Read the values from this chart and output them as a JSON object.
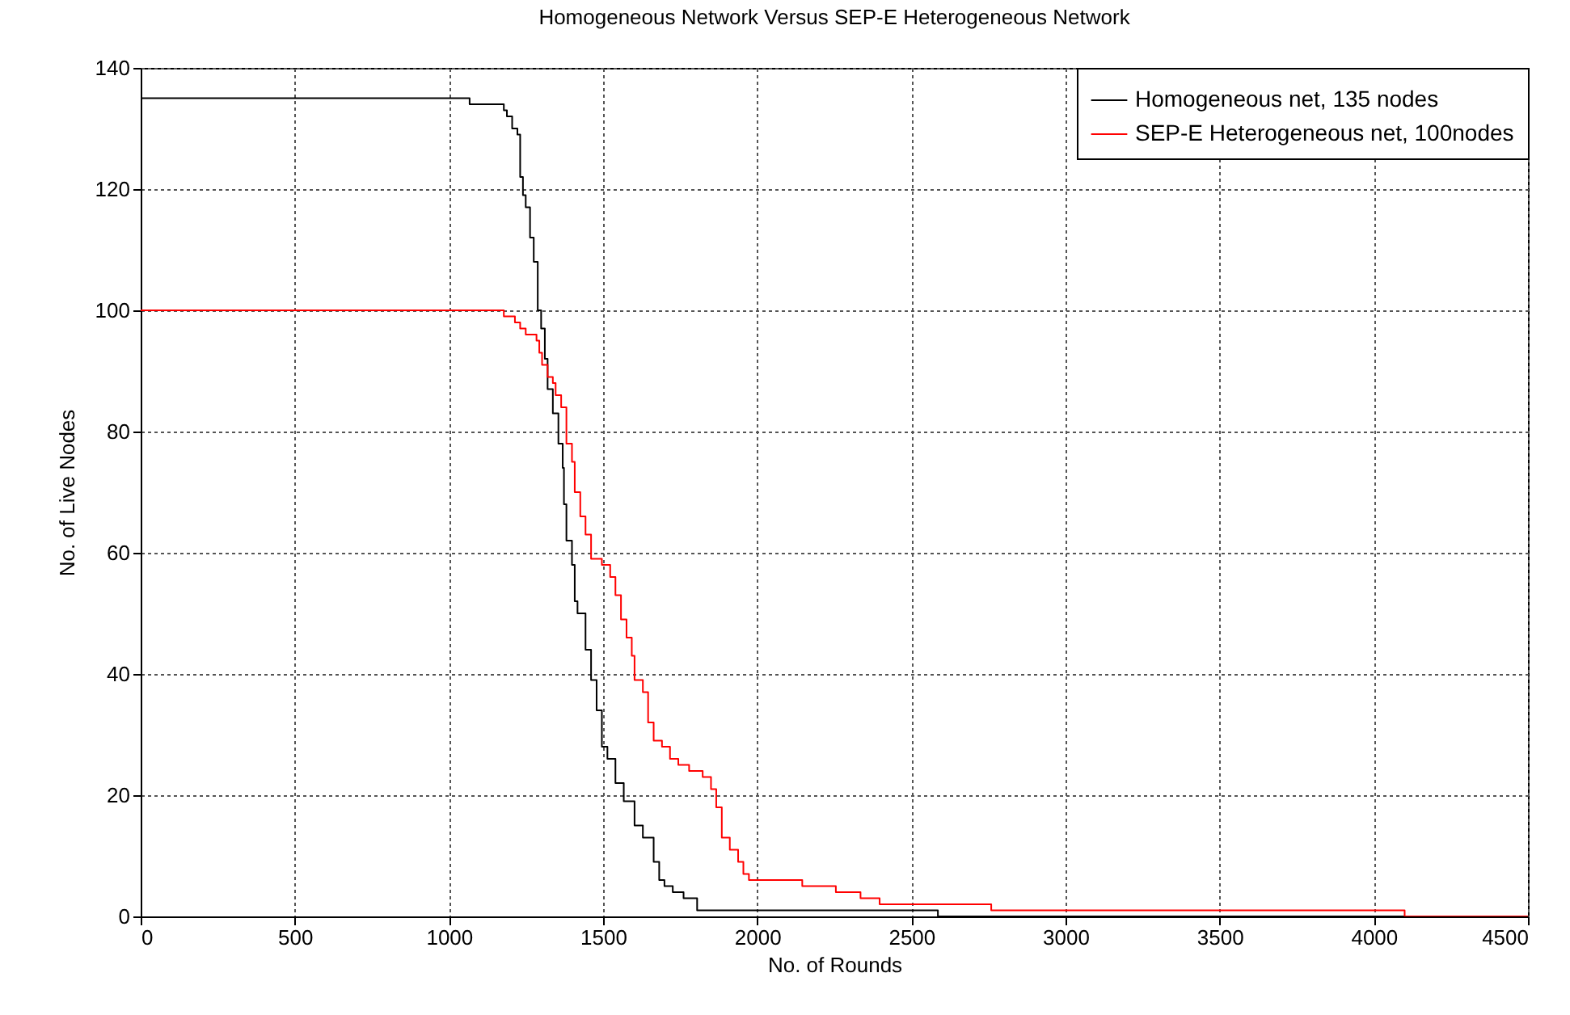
{
  "chart_data": {
    "type": "step",
    "title": "Homogeneous Network Versus SEP-E Heterogeneous Network",
    "xlabel": "No. of Rounds",
    "ylabel": "No. of Live Nodes",
    "xlim": [
      0,
      4500
    ],
    "xticks": [
      0,
      500,
      1000,
      1500,
      2000,
      2500,
      3000,
      3500,
      4000,
      4500
    ],
    "ylim": [
      0,
      140
    ],
    "yticks": [
      0,
      20,
      40,
      60,
      80,
      100,
      120,
      140
    ],
    "grid": true,
    "legend": "top right",
    "line_style": "solid",
    "series": [
      {
        "name": "Homogeneous net, 135 nodes",
        "color": "#000000",
        "x": [
          0,
          1067,
          1178,
          1188,
          1205,
          1222,
          1231,
          1240,
          1249,
          1263,
          1275,
          1288,
          1299,
          1311,
          1320,
          1337,
          1355,
          1369,
          1373,
          1381,
          1399,
          1408,
          1417,
          1443,
          1461,
          1479,
          1496,
          1514,
          1540,
          1567,
          1602,
          1629,
          1664,
          1682,
          1699,
          1726,
          1761,
          1805,
          2586,
          4500
        ],
        "values": [
          135,
          134,
          133,
          132,
          130,
          129,
          122,
          119,
          117,
          112,
          108,
          100,
          97,
          92,
          87,
          83,
          78,
          74,
          68,
          62,
          58,
          52,
          50,
          44,
          39,
          34,
          28,
          26,
          22,
          19,
          15,
          13,
          9,
          6,
          5,
          4,
          3,
          1,
          0,
          0
        ]
      },
      {
        "name": "SEP-E Heterogeneous net, 100nodes",
        "color": "#ff0000",
        "x": [
          0,
          1178,
          1214,
          1231,
          1249,
          1284,
          1293,
          1302,
          1320,
          1337,
          1346,
          1364,
          1381,
          1399,
          1408,
          1426,
          1443,
          1461,
          1496,
          1523,
          1540,
          1558,
          1576,
          1593,
          1602,
          1629,
          1646,
          1664,
          1691,
          1717,
          1744,
          1779,
          1823,
          1850,
          1867,
          1885,
          1911,
          1938,
          1955,
          1973,
          2146,
          2255,
          2335,
          2397,
          2759,
          4100,
          4500
        ],
        "values": [
          100,
          99,
          98,
          97,
          96,
          95,
          93,
          91,
          89,
          88,
          86,
          84,
          78,
          75,
          70,
          66,
          63,
          59,
          58,
          56,
          53,
          49,
          46,
          43,
          39,
          37,
          32,
          29,
          28,
          26,
          25,
          24,
          23,
          21,
          18,
          13,
          11,
          9,
          7,
          6,
          5,
          4,
          3,
          2,
          1,
          0,
          0
        ]
      }
    ]
  }
}
